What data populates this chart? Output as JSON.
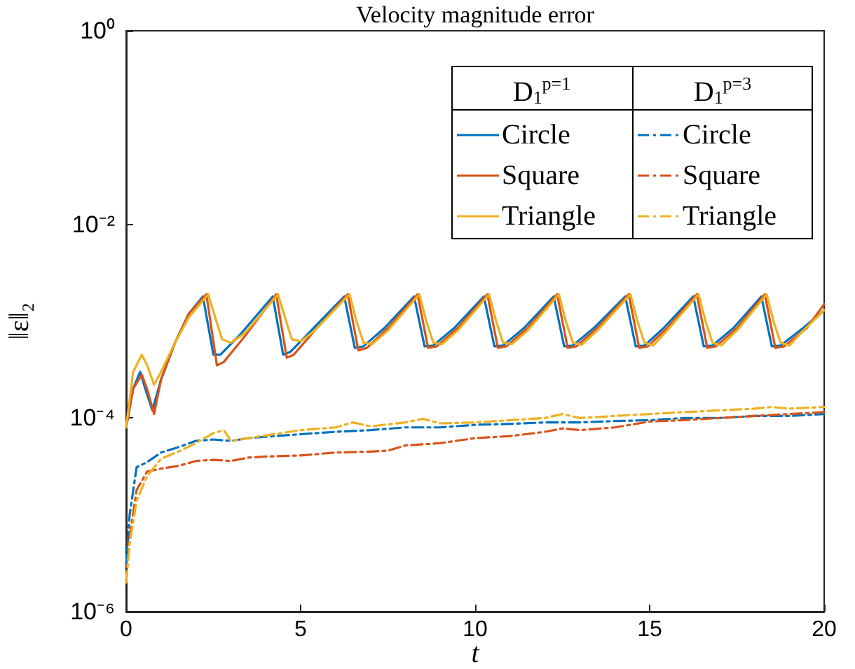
{
  "chart_data": {
    "type": "line",
    "title": "Velocity magnitude error",
    "xlabel": "t",
    "ylabel": "‖ε‖₂",
    "annotations": [
      "D$_{1}$$^{p=1}$",
      "D$_{1}$$^{p=3}$"
    ],
    "log": "y",
    "grid": false,
    "legend": "top right",
    "xlim": [
      0,
      20
    ],
    "xticks": [
      0,
      5,
      10,
      15,
      20
    ],
    "ylim": [
      1e-06,
      1
    ],
    "yticks": [
      {
        "value": 1e-06,
        "label": "10⁻⁶"
      },
      {
        "value": 0.0001,
        "label": "10⁻⁴"
      },
      {
        "value": 0.01,
        "label": "10⁻²"
      },
      {
        "value": 1,
        "label": "10⁰"
      }
    ],
    "series": [
      {
        "name": "Circle",
        "color": "#0072bd",
        "line_style": "solid",
        "x": [
          0,
          0.2,
          0.4,
          0.55,
          0.75,
          1.0,
          1.4,
          1.8,
          2.2,
          2.5,
          2.7,
          3.3,
          4.2,
          4.5,
          4.7,
          5.3,
          6.25,
          6.55,
          6.8,
          7.4,
          8.25,
          8.55,
          8.8,
          9.4,
          10.25,
          10.55,
          10.8,
          11.4,
          12.25,
          12.55,
          12.8,
          13.4,
          14.3,
          14.6,
          14.85,
          15.4,
          16.25,
          16.55,
          16.8,
          17.4,
          18.2,
          18.5,
          18.75,
          19.4,
          20
        ],
        "values": [
          8e-05,
          0.0002,
          0.0003,
          0.0002,
          0.00012,
          0.00025,
          0.0006,
          0.0012,
          0.0018,
          0.00045,
          0.00045,
          0.00075,
          0.0018,
          0.00045,
          0.00048,
          0.0008,
          0.0018,
          0.00053,
          0.00055,
          0.00085,
          0.0018,
          0.00055,
          0.00056,
          0.00085,
          0.0018,
          0.00055,
          0.00056,
          0.00085,
          0.0018,
          0.00055,
          0.00056,
          0.00085,
          0.0018,
          0.00055,
          0.00056,
          0.00085,
          0.0018,
          0.00055,
          0.00056,
          0.00085,
          0.0018,
          0.00055,
          0.00056,
          0.00085,
          0.0013
        ]
      },
      {
        "name": "Square",
        "color": "#d95319",
        "line_style": "solid",
        "x": [
          0,
          0.2,
          0.45,
          0.6,
          0.8,
          1.0,
          1.4,
          1.8,
          2.3,
          2.6,
          2.8,
          3.4,
          4.3,
          4.6,
          4.8,
          5.4,
          6.35,
          6.65,
          6.9,
          7.5,
          8.35,
          8.65,
          8.9,
          9.5,
          10.35,
          10.65,
          10.9,
          11.5,
          12.35,
          12.65,
          12.9,
          13.5,
          14.4,
          14.7,
          14.95,
          15.5,
          16.35,
          16.65,
          16.9,
          17.5,
          18.3,
          18.6,
          18.85,
          19.5,
          20
        ],
        "values": [
          8e-05,
          0.0002,
          0.00028,
          0.0002,
          0.00011,
          0.00025,
          0.0006,
          0.0012,
          0.0019,
          0.00035,
          0.00038,
          0.0007,
          0.0019,
          0.00042,
          0.00045,
          0.0008,
          0.0019,
          0.0005,
          0.00053,
          0.00085,
          0.0019,
          0.00053,
          0.00055,
          0.00085,
          0.0019,
          0.00053,
          0.00055,
          0.00085,
          0.0019,
          0.00053,
          0.00055,
          0.00085,
          0.0019,
          0.00053,
          0.00055,
          0.00085,
          0.0019,
          0.00053,
          0.00055,
          0.00085,
          0.0019,
          0.00053,
          0.00055,
          0.00085,
          0.0015
        ]
      },
      {
        "name": "Triangle",
        "color": "#edb120",
        "line_style": "solid",
        "x": [
          0,
          0.2,
          0.45,
          0.6,
          0.8,
          1.0,
          1.4,
          1.8,
          2.35,
          2.55,
          2.75,
          3.0,
          3.4,
          4.35,
          4.55,
          4.75,
          5.0,
          5.4,
          6.4,
          6.6,
          6.8,
          7.05,
          7.5,
          8.4,
          8.6,
          8.8,
          9.05,
          9.5,
          10.4,
          10.6,
          10.8,
          11.05,
          11.5,
          12.4,
          12.6,
          12.8,
          13.05,
          13.5,
          14.45,
          14.65,
          14.85,
          15.1,
          15.5,
          16.4,
          16.6,
          16.8,
          17.05,
          17.5,
          18.35,
          18.55,
          18.75,
          19.0,
          19.4,
          20
        ],
        "values": [
          8e-05,
          0.0003,
          0.00045,
          0.00035,
          0.00022,
          0.0003,
          0.0006,
          0.0011,
          0.0019,
          0.0011,
          0.00065,
          0.0006,
          0.00075,
          0.0019,
          0.0011,
          0.00065,
          0.00062,
          0.0008,
          0.0019,
          0.001,
          0.0006,
          0.00058,
          0.0008,
          0.0019,
          0.001,
          0.0006,
          0.00058,
          0.0008,
          0.0019,
          0.001,
          0.0006,
          0.00058,
          0.0008,
          0.0019,
          0.001,
          0.0006,
          0.00057,
          0.0008,
          0.0019,
          0.001,
          0.0006,
          0.00056,
          0.0008,
          0.0019,
          0.001,
          0.0006,
          0.00056,
          0.0008,
          0.0019,
          0.001,
          0.0006,
          0.00056,
          0.0008,
          0.0013
        ]
      },
      {
        "name": "Circle",
        "color": "#0072bd",
        "line_style": "dashed",
        "x": [
          0,
          0.1,
          0.3,
          0.6,
          1.0,
          1.5,
          2.0,
          2.5,
          3.0,
          3.5,
          4.0,
          5.0,
          6.0,
          7.0,
          8.0,
          9.0,
          10.0,
          11.0,
          12.0,
          13.0,
          14.0,
          15.0,
          16.0,
          17.0,
          18.0,
          19.0,
          20
        ],
        "values": [
          3e-06,
          1e-05,
          3.1e-05,
          3.5e-05,
          4.4e-05,
          5e-05,
          5.8e-05,
          6e-05,
          5.8e-05,
          6.2e-05,
          6.4e-05,
          6.8e-05,
          7.2e-05,
          7.5e-05,
          8e-05,
          8e-05,
          8.5e-05,
          8.7e-05,
          9e-05,
          9e-05,
          9.3e-05,
          9.5e-05,
          0.0001,
          0.0001,
          0.000105,
          0.000105,
          0.00011
        ]
      },
      {
        "name": "Square",
        "color": "#d95319",
        "line_style": "dashed",
        "x": [
          0,
          0.1,
          0.3,
          0.6,
          1.0,
          1.5,
          2.0,
          2.5,
          3.0,
          3.5,
          4.0,
          5.0,
          6.0,
          7.0,
          7.5,
          8.0,
          9.0,
          10.0,
          11.0,
          12.0,
          12.5,
          13.0,
          14.0,
          15.0,
          16.0,
          17.0,
          18.0,
          19.0,
          20
        ],
        "values": [
          2e-06,
          6e-06,
          1.8e-05,
          2.8e-05,
          3e-05,
          3.2e-05,
          3.6e-05,
          3.7e-05,
          3.6e-05,
          3.9e-05,
          4e-05,
          4.1e-05,
          4.4e-05,
          4.5e-05,
          4.6e-05,
          5.2e-05,
          5.5e-05,
          6.2e-05,
          6.5e-05,
          7.2e-05,
          7.8e-05,
          7.5e-05,
          8e-05,
          9.2e-05,
          9.5e-05,
          0.0001,
          0.000105,
          0.00011,
          0.000115
        ]
      },
      {
        "name": "Triangle",
        "color": "#edb120",
        "line_style": "dashed",
        "x": [
          0,
          0.1,
          0.3,
          0.6,
          1.0,
          1.5,
          2.0,
          2.5,
          2.8,
          3.0,
          3.5,
          4.0,
          5.0,
          6.0,
          6.5,
          7.0,
          8.0,
          8.5,
          9.0,
          10.0,
          11.0,
          12.0,
          12.5,
          13.0,
          14.0,
          15.0,
          16.0,
          17.0,
          18.0,
          18.5,
          19.0,
          20
        ],
        "values": [
          2e-06,
          5e-06,
          1.4e-05,
          2.5e-05,
          3.8e-05,
          4.5e-05,
          5.5e-05,
          7e-05,
          7.5e-05,
          5.8e-05,
          6.2e-05,
          6.6e-05,
          7.5e-05,
          8e-05,
          9e-05,
          8.2e-05,
          9e-05,
          9.8e-05,
          8.8e-05,
          9e-05,
          9.5e-05,
          0.0001,
          0.00011,
          0.0001,
          0.000105,
          0.00011,
          0.000115,
          0.00012,
          0.000125,
          0.00013,
          0.000125,
          0.00013
        ]
      }
    ]
  }
}
